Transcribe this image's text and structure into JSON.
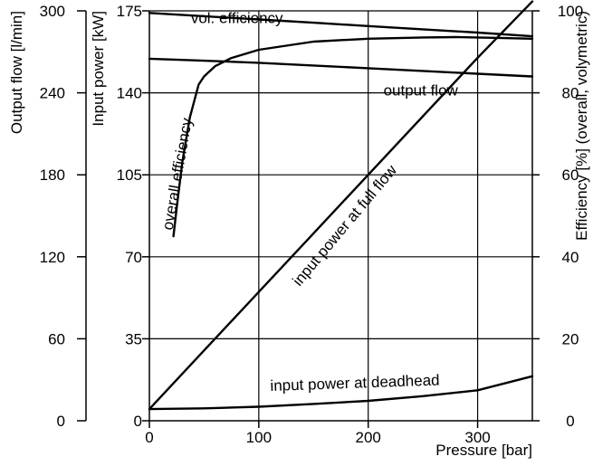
{
  "chart_data": {
    "type": "line",
    "x_axis": {
      "label": "Pressure [bar]",
      "range": [
        0,
        350
      ],
      "ticks": [
        0,
        100,
        200,
        300
      ]
    },
    "y_axes": [
      {
        "id": "flow",
        "label": "Output flow [l/min]",
        "range": [
          0,
          300
        ],
        "ticks": [
          0,
          60,
          120,
          180,
          240,
          300
        ]
      },
      {
        "id": "power",
        "label": "Input power [kW]",
        "range": [
          0,
          175
        ],
        "ticks": [
          0,
          35,
          70,
          105,
          140,
          175
        ]
      },
      {
        "id": "eff",
        "label": "Efficiency [%] (overall, volymetric)",
        "range": [
          0,
          100
        ],
        "ticks": [
          0,
          20,
          40,
          60,
          80,
          100
        ]
      }
    ],
    "series": [
      {
        "name": "vol. efficiency",
        "axis": "eff",
        "x": [
          0,
          50,
          100,
          150,
          200,
          250,
          300,
          350
        ],
        "y": [
          99.5,
          98.7,
          97.9,
          97.1,
          96.3,
          95.5,
          94.7,
          93.8
        ]
      },
      {
        "name": "output flow",
        "axis": "flow",
        "x": [
          0,
          50,
          100,
          150,
          200,
          250,
          300,
          350
        ],
        "y": [
          265,
          263.5,
          262,
          260,
          258,
          256,
          254,
          252
        ]
      },
      {
        "name": "overall efficiency",
        "axis": "eff",
        "x": [
          22,
          25,
          30,
          37,
          45,
          50,
          60,
          75,
          100,
          150,
          200,
          250,
          280,
          320,
          350
        ],
        "y": [
          45,
          52,
          63,
          74,
          82,
          84,
          86.5,
          88.5,
          90.5,
          92.5,
          93.2,
          93.5,
          93.6,
          93.4,
          93.2
        ]
      },
      {
        "name": "input power at full flow",
        "axis": "power",
        "x": [
          0,
          50,
          100,
          150,
          200,
          250,
          300,
          350
        ],
        "y": [
          5,
          30,
          55,
          80,
          105,
          130,
          155,
          179
        ]
      },
      {
        "name": "input power at deadhead",
        "axis": "power",
        "x": [
          0,
          50,
          100,
          150,
          200,
          250,
          300,
          350
        ],
        "y": [
          5,
          5.3,
          6,
          7.2,
          8.5,
          10.5,
          13,
          19
        ]
      }
    ],
    "annotations": [
      {
        "text": "vol. efficiency",
        "x": 80,
        "axis": "eff",
        "y": 97,
        "rotate": 0
      },
      {
        "text": "output flow",
        "x": 248,
        "axis": "flow",
        "y": 238,
        "rotate": 0
      },
      {
        "text": "overall efficiency",
        "x": 30,
        "axis": "eff",
        "y": 60,
        "rotate": -80
      },
      {
        "text": "input power at full flow",
        "x": 182,
        "axis": "power",
        "y": 82,
        "rotate": -50
      },
      {
        "text": "input power at deadhead",
        "x": 188,
        "axis": "power",
        "y": 14,
        "rotate": -2
      }
    ],
    "grid": true,
    "legend": "none"
  }
}
